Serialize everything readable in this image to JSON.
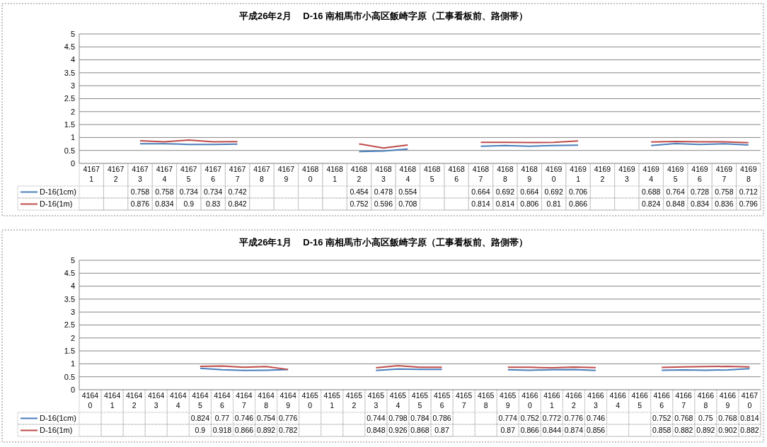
{
  "chart_data": [
    {
      "type": "line",
      "title": "平成26年2月　 D-16 南相馬市小高区飯崎字原（工事看板前、路側帯）",
      "categories": [
        "41671",
        "41672",
        "41673",
        "41674",
        "41675",
        "41676",
        "41677",
        "41678",
        "41679",
        "41680",
        "41681",
        "41682",
        "41683",
        "41684",
        "41685",
        "41686",
        "41687",
        "41688",
        "41689",
        "41690",
        "41691",
        "41692",
        "41693",
        "41694",
        "41695",
        "41696",
        "41697",
        "41698"
      ],
      "series": [
        {
          "name": "D-16(1cm)",
          "color": "#4a7ebb",
          "values": [
            null,
            null,
            0.758,
            0.758,
            0.734,
            0.734,
            0.742,
            null,
            null,
            null,
            null,
            0.454,
            0.478,
            0.554,
            null,
            null,
            0.664,
            0.692,
            0.664,
            0.692,
            0.706,
            null,
            null,
            0.688,
            0.764,
            0.728,
            0.758,
            0.712
          ]
        },
        {
          "name": "D-16(1m)",
          "color": "#be4b48",
          "values": [
            null,
            null,
            0.876,
            0.834,
            0.9,
            0.83,
            0.842,
            null,
            null,
            null,
            null,
            0.752,
            0.596,
            0.708,
            null,
            null,
            0.814,
            0.814,
            0.806,
            0.81,
            0.866,
            null,
            null,
            0.824,
            0.848,
            0.834,
            0.836,
            0.796
          ]
        }
      ],
      "ylim": [
        0,
        5
      ],
      "yticks": [
        0,
        0.5,
        1,
        1.5,
        2,
        2.5,
        3,
        3.5,
        4,
        4.5,
        5
      ],
      "grid": "y",
      "legend": "bottom",
      "data_labels": true,
      "marker": "none"
    },
    {
      "type": "line",
      "title": "平成26年1月　 D-16 南相馬市小高区飯崎字原（工事看板前、路側帯）",
      "categories": [
        "41640",
        "41641",
        "41642",
        "41643",
        "41644",
        "41645",
        "41646",
        "41647",
        "41648",
        "41649",
        "41650",
        "41651",
        "41652",
        "41653",
        "41654",
        "41655",
        "41656",
        "41657",
        "41658",
        "41659",
        "41660",
        "41661",
        "41662",
        "41663",
        "41664",
        "41665",
        "41666",
        "41667",
        "41668",
        "41669",
        "41670"
      ],
      "series": [
        {
          "name": "D-16(1cm)",
          "color": "#4a7ebb",
          "values": [
            null,
            null,
            null,
            null,
            null,
            0.824,
            0.77,
            0.746,
            0.754,
            0.776,
            null,
            null,
            null,
            0.744,
            0.798,
            0.784,
            0.786,
            null,
            null,
            0.774,
            0.752,
            0.772,
            0.776,
            0.746,
            null,
            null,
            0.752,
            0.768,
            0.75,
            0.768,
            0.814
          ]
        },
        {
          "name": "D-16(1m)",
          "color": "#be4b48",
          "values": [
            null,
            null,
            null,
            null,
            null,
            0.9,
            0.918,
            0.866,
            0.892,
            0.782,
            null,
            null,
            null,
            0.848,
            0.926,
            0.868,
            0.87,
            null,
            null,
            0.87,
            0.866,
            0.844,
            0.874,
            0.856,
            null,
            null,
            0.858,
            0.882,
            0.892,
            0.902,
            0.882
          ]
        }
      ],
      "ylim": [
        0,
        5
      ],
      "yticks": [
        0,
        0.5,
        1,
        1.5,
        2,
        2.5,
        3,
        3.5,
        4,
        4.5,
        5
      ],
      "grid": "y",
      "legend": "bottom",
      "data_labels": true,
      "marker": "none"
    }
  ]
}
